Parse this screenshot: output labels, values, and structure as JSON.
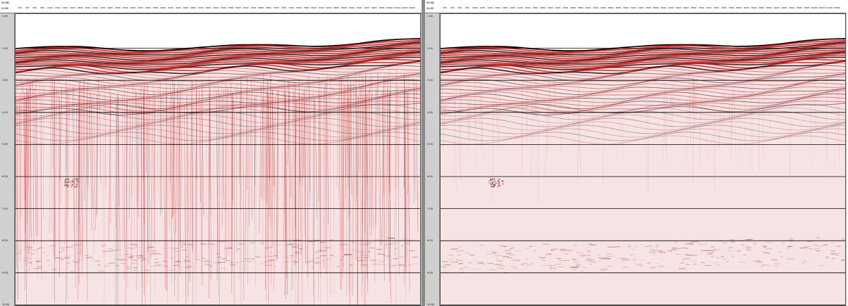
{
  "panels": [
    {
      "id": "left",
      "header": {
        "row1_label": "INLINE",
        "row2_label": "XLINE"
      },
      "x_ticks": [
        "200",
        "400",
        "600",
        "800",
        "1000",
        "1200",
        "1400",
        "1600",
        "1800",
        "2000",
        "2200",
        "2400",
        "2600",
        "2800",
        "3000",
        "3200",
        "3400",
        "3600",
        "3800",
        "4000",
        "4200",
        "4400",
        "4600",
        "4800",
        "5000",
        "5200",
        "5400",
        "5600",
        "5800",
        "6000",
        "6200",
        "6400",
        "6600",
        "6800",
        "7000",
        "7200",
        "7400",
        "7600",
        "7800",
        "8000",
        "8200",
        "8400",
        "8600",
        "8800",
        "9000",
        "9200",
        "9400",
        "9600",
        "9800",
        "10000",
        "10200",
        "10400",
        "10600"
      ],
      "y_ticks": [
        "1.00",
        "2.00",
        "3.00",
        "4.00",
        "5.00",
        "6.00",
        "7.00",
        "8.00",
        "9.00",
        "10.00"
      ]
    },
    {
      "id": "right",
      "header": {
        "row1_label": "INLINE",
        "row2_label": "XLINE"
      },
      "x_ticks": [
        "200",
        "400",
        "600",
        "800",
        "1000",
        "1200",
        "1400",
        "1600",
        "1800",
        "2000",
        "2200",
        "2400",
        "2600",
        "2800",
        "3000",
        "3200",
        "3400",
        "3600",
        "3800",
        "4000",
        "4200",
        "4400",
        "4600",
        "4800",
        "5000",
        "5200",
        "5400",
        "5600",
        "5800",
        "6000",
        "6200",
        "6400",
        "6600",
        "6800",
        "7000",
        "7200",
        "7400",
        "7600",
        "7800",
        "8000",
        "8200",
        "8400",
        "8600",
        "8800",
        "9000",
        "9200",
        "9400",
        "9600",
        "9800",
        "10000",
        "10200",
        "10400",
        "10600"
      ],
      "y_ticks": [
        "1.00",
        "2.00",
        "3.00",
        "4.00",
        "5.00",
        "6.00",
        "7.00",
        "8.00",
        "9.00",
        "10.00"
      ]
    }
  ],
  "colors": {
    "reflector_red": "#c41a1a",
    "reflector_black": "#1a0505",
    "background_pink": "#f6e4e4",
    "gridline": "#000000"
  }
}
